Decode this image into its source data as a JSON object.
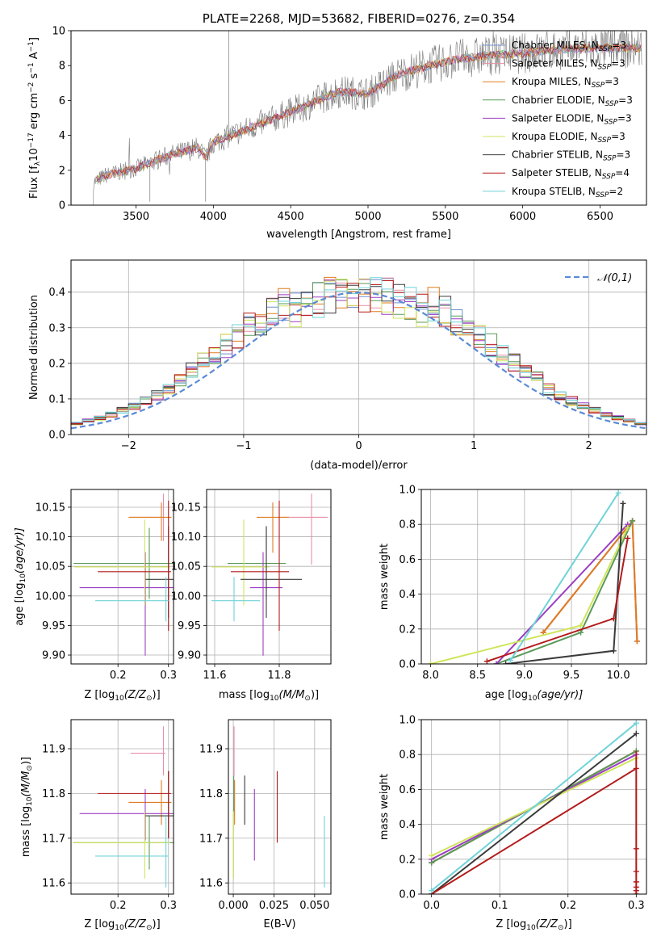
{
  "colors": {
    "s0": "#6f8fd0",
    "s1": "#e88fa7",
    "s2": "#e07c1f",
    "s3": "#5a9a5a",
    "s4": "#9b3fc2",
    "s5": "#cfe55a",
    "s6": "#3b3b3b",
    "s7": "#b31a1a",
    "s8": "#6fd3d8",
    "gray": "#7a7a7a",
    "grid": "#b0b0b0",
    "normal": "#5b8ad6"
  },
  "chart_data": [
    {
      "id": "spectrum",
      "type": "line",
      "title": "PLATE=2268, MJD=53682, FIBERID=0276, z=0.354",
      "xlabel": "wavelength [Angstrom, rest frame]",
      "ylabel": "Flux [f",
      "ylabel_sub": "λ",
      "ylabel_rest": "10",
      "ylabel_exp": "−17",
      "ylabel_units": " erg cm",
      "ylabel_units_exp": "−2",
      "ylabel_units2": " s",
      "ylabel_units2_exp": "−1",
      "ylabel_units3": " A",
      "ylabel_units3_exp": "−1",
      "ylabel_end": "]",
      "xlim": [
        3080,
        6800
      ],
      "ylim": [
        0,
        10
      ],
      "xticks": [
        3500,
        4000,
        4500,
        5000,
        5500,
        6000,
        6500
      ],
      "yticks": [
        0,
        2,
        4,
        6,
        8,
        10
      ],
      "data_start": 3225,
      "data_end": 6770,
      "approx_continuum": [
        [
          3225,
          1.3
        ],
        [
          3300,
          1.7
        ],
        [
          3500,
          2.1
        ],
        [
          3700,
          2.8
        ],
        [
          3900,
          3.3
        ],
        [
          3950,
          2.7
        ],
        [
          4000,
          3.6
        ],
        [
          4200,
          4.3
        ],
        [
          4400,
          5.0
        ],
        [
          4600,
          5.7
        ],
        [
          4800,
          6.5
        ],
        [
          5000,
          6.4
        ],
        [
          5200,
          7.5
        ],
        [
          5400,
          8.0
        ],
        [
          5600,
          8.4
        ],
        [
          5800,
          8.6
        ],
        [
          6000,
          8.7
        ],
        [
          6200,
          8.9
        ],
        [
          6400,
          9.0
        ],
        [
          6600,
          9.0
        ],
        [
          6770,
          9.0
        ]
      ],
      "legend": [
        {
          "name": "Chabrier MILES, N",
          "sub": "SSP",
          "tail": "=3"
        },
        {
          "name": "Salpeter MILES, N",
          "sub": "SSP",
          "tail": "=3"
        },
        {
          "name": "Kroupa MILES, N",
          "sub": "SSP",
          "tail": "=3"
        },
        {
          "name": "Chabrier ELODIE, N",
          "sub": "SSP",
          "tail": "=3"
        },
        {
          "name": "Salpeter ELODIE, N",
          "sub": "SSP",
          "tail": "=3"
        },
        {
          "name": "Kroupa ELODIE, N",
          "sub": "SSP",
          "tail": "=3"
        },
        {
          "name": "Chabrier STELIB, N",
          "sub": "SSP",
          "tail": "=3"
        },
        {
          "name": "Salpeter STELIB, N",
          "sub": "SSP",
          "tail": "=4"
        },
        {
          "name": "Kroupa STELIB, N",
          "sub": "SSP",
          "tail": "=2"
        }
      ]
    },
    {
      "id": "residuals",
      "type": "histogram",
      "xlabel": "(data-model)/error",
      "ylabel": "Normed distribution",
      "xlim": [
        -2.5,
        2.5
      ],
      "ylim": [
        0,
        0.49
      ],
      "xticks": [
        -2,
        -1,
        0,
        1,
        2
      ],
      "xticklabels": [
        "−2",
        "−1",
        "0",
        "1",
        "2"
      ],
      "yticks": [
        0,
        0.1,
        0.2,
        0.3,
        0.4
      ],
      "yticklabels": [
        "0.0",
        "0.1",
        "0.2",
        "0.3",
        "0.4"
      ],
      "bin_width": 0.1,
      "bin_start": -2.5,
      "reference_curve": {
        "name": "𝒩(0,1)",
        "mean": 0,
        "sigma": 1
      }
    },
    {
      "id": "age_vs_Z",
      "type": "errorbar",
      "xlabel": "Z [log",
      "xlabel_sub": "10",
      "xlabel_rest": "(Z/Z",
      "xlabel_sun": "⊙",
      "xlabel_end": ")]",
      "ylabel": "age  [log",
      "ylabel_sub": "10",
      "ylabel_rest": "(age/yr)]",
      "xlim": [
        0.107,
        0.31
      ],
      "ylim": [
        9.885,
        10.18
      ],
      "xticks": [
        0.2,
        0.3
      ],
      "xticklabels": [
        "0.2",
        "0.3"
      ],
      "yticks": [
        9.9,
        9.95,
        10.0,
        10.05,
        10.1,
        10.15
      ],
      "yticklabels": [
        "9.90",
        "9.95",
        "10.00",
        "10.05",
        "10.10",
        "10.15"
      ],
      "points": [
        {
          "s": 1,
          "x": 0.29,
          "xerr": [
            0.065,
            0.004
          ],
          "y": 10.133,
          "yerr": [
            0.04,
            0.04
          ]
        },
        {
          "s": 2,
          "x": 0.286,
          "xerr": [
            0.065,
            0.02
          ],
          "y": 10.133,
          "yerr": [
            0.04,
            0.025
          ]
        },
        {
          "s": 3,
          "x": 0.262,
          "xerr": [
            0.15,
            0.05
          ],
          "y": 10.055,
          "yerr": [
            0.06,
            0.06
          ]
        },
        {
          "s": 4,
          "x": 0.254,
          "xerr": [
            0.13,
            0.06
          ],
          "y": 10.014,
          "yerr": [
            0.115,
            0.06
          ]
        },
        {
          "s": 5,
          "x": 0.253,
          "xerr": [
            0.14,
            0.05
          ],
          "y": 10.049,
          "yerr": [
            0.065,
            0.08
          ]
        },
        {
          "s": 6,
          "x": 0.3,
          "xerr": [
            0.045,
            0.01
          ],
          "y": 10.028,
          "yerr": [
            0.065,
            0.09
          ]
        },
        {
          "s": 7,
          "x": 0.3,
          "xerr": [
            0.14,
            0.005
          ],
          "y": 10.041,
          "yerr": [
            0.1,
            0.12
          ]
        },
        {
          "s": 8,
          "x": 0.295,
          "xerr": [
            0.14,
            0.005
          ],
          "y": 9.992,
          "yerr": [
            0.035,
            0.04
          ]
        }
      ]
    },
    {
      "id": "age_vs_mass",
      "type": "errorbar",
      "xlabel": "mass [log",
      "xlabel_sub": "10",
      "xlabel_rest": "(M/M",
      "xlabel_sun": "⊙",
      "xlabel_end": ")]",
      "xlim": [
        11.575,
        11.96
      ],
      "ylim": [
        9.885,
        10.18
      ],
      "xticks": [
        11.6,
        11.8
      ],
      "xticklabels": [
        "11.6",
        "11.8"
      ],
      "yticks": [
        9.9,
        9.95,
        10.0,
        10.05,
        10.1,
        10.15
      ],
      "yticklabels": [
        "9.90",
        "9.95",
        "10.00",
        "10.05",
        "10.10",
        "10.15"
      ],
      "points": [
        {
          "s": 1,
          "x": 11.9,
          "xerr": [
            0.09,
            0.05
          ],
          "y": 10.133,
          "yerr": [
            0.08,
            0.04
          ]
        },
        {
          "s": 2,
          "x": 11.78,
          "xerr": [
            0.05,
            0.05
          ],
          "y": 10.133,
          "yerr": [
            0.06,
            0.025
          ]
        },
        {
          "s": 3,
          "x": 11.76,
          "xerr": [
            0.12,
            0.06
          ],
          "y": 10.055,
          "yerr": [
            0.06,
            0.06
          ]
        },
        {
          "s": 4,
          "x": 11.75,
          "xerr": [
            0.04,
            0.06
          ],
          "y": 10.014,
          "yerr": [
            0.115,
            0.06
          ]
        },
        {
          "s": 5,
          "x": 11.69,
          "xerr": [
            0.1,
            0.08
          ],
          "y": 10.049,
          "yerr": [
            0.065,
            0.08
          ]
        },
        {
          "s": 6,
          "x": 11.76,
          "xerr": [
            0.08,
            0.11
          ],
          "y": 10.028,
          "yerr": [
            0.065,
            0.09
          ]
        },
        {
          "s": 7,
          "x": 11.8,
          "xerr": [
            0.15,
            0.03
          ],
          "y": 10.041,
          "yerr": [
            0.1,
            0.12
          ]
        },
        {
          "s": 8,
          "x": 11.66,
          "xerr": [
            0.07,
            0.08
          ],
          "y": 9.992,
          "yerr": [
            0.035,
            0.04
          ]
        }
      ]
    },
    {
      "id": "weight_vs_age",
      "type": "line",
      "xlabel": "age  [log",
      "xlabel_sub": "10",
      "xlabel_rest": "(age/yr)]",
      "ylabel": "mass weight",
      "xlim": [
        7.9,
        10.3
      ],
      "ylim": [
        0,
        1
      ],
      "xticks": [
        8.0,
        8.5,
        9.0,
        9.5,
        10.0
      ],
      "xticklabels": [
        "8.0",
        "8.5",
        "9.0",
        "9.5",
        "10.0"
      ],
      "yticks": [
        0,
        0.2,
        0.4,
        0.6,
        0.8,
        1.0
      ],
      "yticklabels": [
        "0.0",
        "0.2",
        "0.4",
        "0.6",
        "0.8",
        "1.0"
      ],
      "series": [
        {
          "s": 0,
          "points": [
            [
              9.2,
              0.18
            ],
            [
              10.15,
              0.82
            ],
            [
              10.2,
              0.13
            ]
          ]
        },
        {
          "s": 1,
          "points": [
            [
              9.2,
              0.18
            ],
            [
              10.15,
              0.82
            ],
            [
              10.2,
              0.13
            ]
          ]
        },
        {
          "s": 2,
          "points": [
            [
              9.2,
              0.18
            ],
            [
              10.15,
              0.82
            ],
            [
              10.2,
              0.13
            ]
          ]
        },
        {
          "s": 3,
          "points": [
            [
              8.7,
              0.0
            ],
            [
              9.6,
              0.18
            ],
            [
              10.15,
              0.82
            ]
          ]
        },
        {
          "s": 4,
          "points": [
            [
              8.7,
              0.0
            ],
            [
              10.1,
              0.8
            ]
          ]
        },
        {
          "s": 5,
          "points": [
            [
              8.0,
              0.0
            ],
            [
              9.6,
              0.22
            ],
            [
              10.1,
              0.78
            ]
          ]
        },
        {
          "s": 6,
          "points": [
            [
              8.8,
              0.0
            ],
            [
              9.95,
              0.075
            ],
            [
              10.05,
              0.92
            ]
          ]
        },
        {
          "s": 7,
          "points": [
            [
              8.6,
              0.015
            ],
            [
              9.95,
              0.26
            ],
            [
              10.1,
              0.72
            ]
          ]
        },
        {
          "s": 8,
          "points": [
            [
              8.85,
              0.02
            ],
            [
              10.0,
              0.98
            ]
          ]
        }
      ]
    },
    {
      "id": "mass_vs_Z",
      "type": "errorbar",
      "xlabel": "Z [log",
      "xlabel_sub": "10",
      "xlabel_rest": "(Z/Z",
      "xlabel_sun": "⊙",
      "xlabel_end": ")]",
      "ylabel": "mass [log",
      "ylabel_sub": "10",
      "ylabel_rest": "(M/M",
      "ylabel_sun": "⊙",
      "ylabel_end": ")]",
      "xlim": [
        0.107,
        0.31
      ],
      "ylim": [
        11.575,
        11.965
      ],
      "xticks": [
        0.2,
        0.3
      ],
      "xticklabels": [
        "0.2",
        "0.3"
      ],
      "yticks": [
        11.6,
        11.7,
        11.8,
        11.9
      ],
      "yticklabels": [
        "11.6",
        "11.7",
        "11.8",
        "11.9"
      ],
      "points": [
        {
          "s": 1,
          "x": 0.29,
          "xerr": [
            0.065,
            0.004
          ],
          "y": 11.89,
          "yerr": [
            0.05,
            0.06
          ]
        },
        {
          "s": 2,
          "x": 0.286,
          "xerr": [
            0.065,
            0.02
          ],
          "y": 11.78,
          "yerr": [
            0.05,
            0.05
          ]
        },
        {
          "s": 3,
          "x": 0.262,
          "xerr": [
            0.15,
            0.05
          ],
          "y": 11.69,
          "yerr": [
            0.06,
            0.06
          ]
        },
        {
          "s": 4,
          "x": 0.254,
          "xerr": [
            0.13,
            0.06
          ],
          "y": 11.755,
          "yerr": [
            0.06,
            0.055
          ]
        },
        {
          "s": 5,
          "x": 0.253,
          "xerr": [
            0.14,
            0.05
          ],
          "y": 11.69,
          "yerr": [
            0.08,
            0.07
          ]
        },
        {
          "s": 6,
          "x": 0.3,
          "xerr": [
            0.045,
            0.01
          ],
          "y": 11.75,
          "yerr": [
            0.05,
            0.1
          ]
        },
        {
          "s": 7,
          "x": 0.3,
          "xerr": [
            0.14,
            0.005
          ],
          "y": 11.8,
          "yerr": [
            0.1,
            0.05
          ]
        },
        {
          "s": 8,
          "x": 0.295,
          "xerr": [
            0.14,
            0.005
          ],
          "y": 11.66,
          "yerr": [
            0.07,
            0.09
          ]
        }
      ]
    },
    {
      "id": "mass_vs_ebv",
      "type": "errorbar",
      "xlabel": "E(B-V)",
      "xlim": [
        -0.003,
        0.06
      ],
      "ylim": [
        11.575,
        11.965
      ],
      "xticks": [
        0.0,
        0.025,
        0.05
      ],
      "xticklabels": [
        "0.000",
        "0.025",
        "0.050"
      ],
      "yticks": [
        11.6,
        11.7,
        11.8,
        11.9
      ],
      "yticklabels": [
        "11.6",
        "11.7",
        "11.8",
        "11.9"
      ],
      "points": [
        {
          "s": 1,
          "x": 0.0005,
          "xerr": [
            0,
            0
          ],
          "y": 11.89,
          "yerr": [
            0.05,
            0.06
          ]
        },
        {
          "s": 2,
          "x": 0.0008,
          "xerr": [
            0,
            0
          ],
          "y": 11.78,
          "yerr": [
            0.05,
            0.05
          ]
        },
        {
          "s": 3,
          "x": 0.0003,
          "xerr": [
            0,
            0
          ],
          "y": 11.79,
          "yerr": [
            0.04,
            0.05
          ]
        },
        {
          "s": 4,
          "x": 0.013,
          "xerr": [
            0,
            0
          ],
          "y": 11.73,
          "yerr": [
            0.08,
            0.08
          ]
        },
        {
          "s": 5,
          "x": 0.0002,
          "xerr": [
            0,
            0
          ],
          "y": 11.69,
          "yerr": [
            0.08,
            0.07
          ]
        },
        {
          "s": 6,
          "x": 0.007,
          "xerr": [
            0,
            0
          ],
          "y": 11.79,
          "yerr": [
            0.06,
            0.05
          ]
        },
        {
          "s": 7,
          "x": 0.027,
          "xerr": [
            0,
            0
          ],
          "y": 11.77,
          "yerr": [
            0.08,
            0.08
          ]
        },
        {
          "s": 8,
          "x": 0.056,
          "xerr": [
            0,
            0
          ],
          "y": 11.67,
          "yerr": [
            0.08,
            0.08
          ]
        }
      ]
    },
    {
      "id": "weight_vs_Z",
      "type": "line",
      "xlabel": "Z [log",
      "xlabel_sub": "10",
      "xlabel_rest": "(Z/Z",
      "xlabel_sun": "⊙",
      "xlabel_end": ")]",
      "ylabel": "mass weight",
      "xlim": [
        -0.015,
        0.315
      ],
      "ylim": [
        0,
        1
      ],
      "xticks": [
        0.0,
        0.1,
        0.2,
        0.3
      ],
      "xticklabels": [
        "0.0",
        "0.1",
        "0.2",
        "0.3"
      ],
      "yticks": [
        0,
        0.2,
        0.4,
        0.6,
        0.8,
        1.0
      ],
      "yticklabels": [
        "0.0",
        "0.2",
        "0.4",
        "0.6",
        "0.8",
        "1.0"
      ],
      "series": [
        {
          "s": 0,
          "points": [
            [
              0.0,
              0.18
            ],
            [
              0.3,
              0.82
            ]
          ]
        },
        {
          "s": 1,
          "points": [
            [
              0.0,
              0.18
            ],
            [
              0.3,
              0.82
            ]
          ]
        },
        {
          "s": 2,
          "points": [
            [
              0.0,
              0.18
            ],
            [
              0.3,
              0.82
            ]
          ]
        },
        {
          "s": 3,
          "points": [
            [
              0.0,
              0.18
            ],
            [
              0.3,
              0.82
            ]
          ]
        },
        {
          "s": 4,
          "points": [
            [
              0.0,
              0.2
            ],
            [
              0.3,
              0.8
            ]
          ]
        },
        {
          "s": 5,
          "points": [
            [
              0.0,
              0.22
            ],
            [
              0.3,
              0.78
            ]
          ]
        },
        {
          "s": 6,
          "points": [
            [
              0.0,
              0.0
            ],
            [
              0.3,
              0.92
            ]
          ]
        },
        {
          "s": 7,
          "points": [
            [
              0.0,
              0.0
            ],
            [
              0.3,
              0.72
            ]
          ]
        },
        {
          "s": 8,
          "points": [
            [
              0.0,
              0.02
            ],
            [
              0.3,
              0.98
            ]
          ]
        }
      ],
      "vertical_markers": {
        "x": 0.3,
        "y": [
          0.26,
          0.13,
          0.07,
          0.04,
          0.02,
          0.0
        ]
      }
    }
  ]
}
